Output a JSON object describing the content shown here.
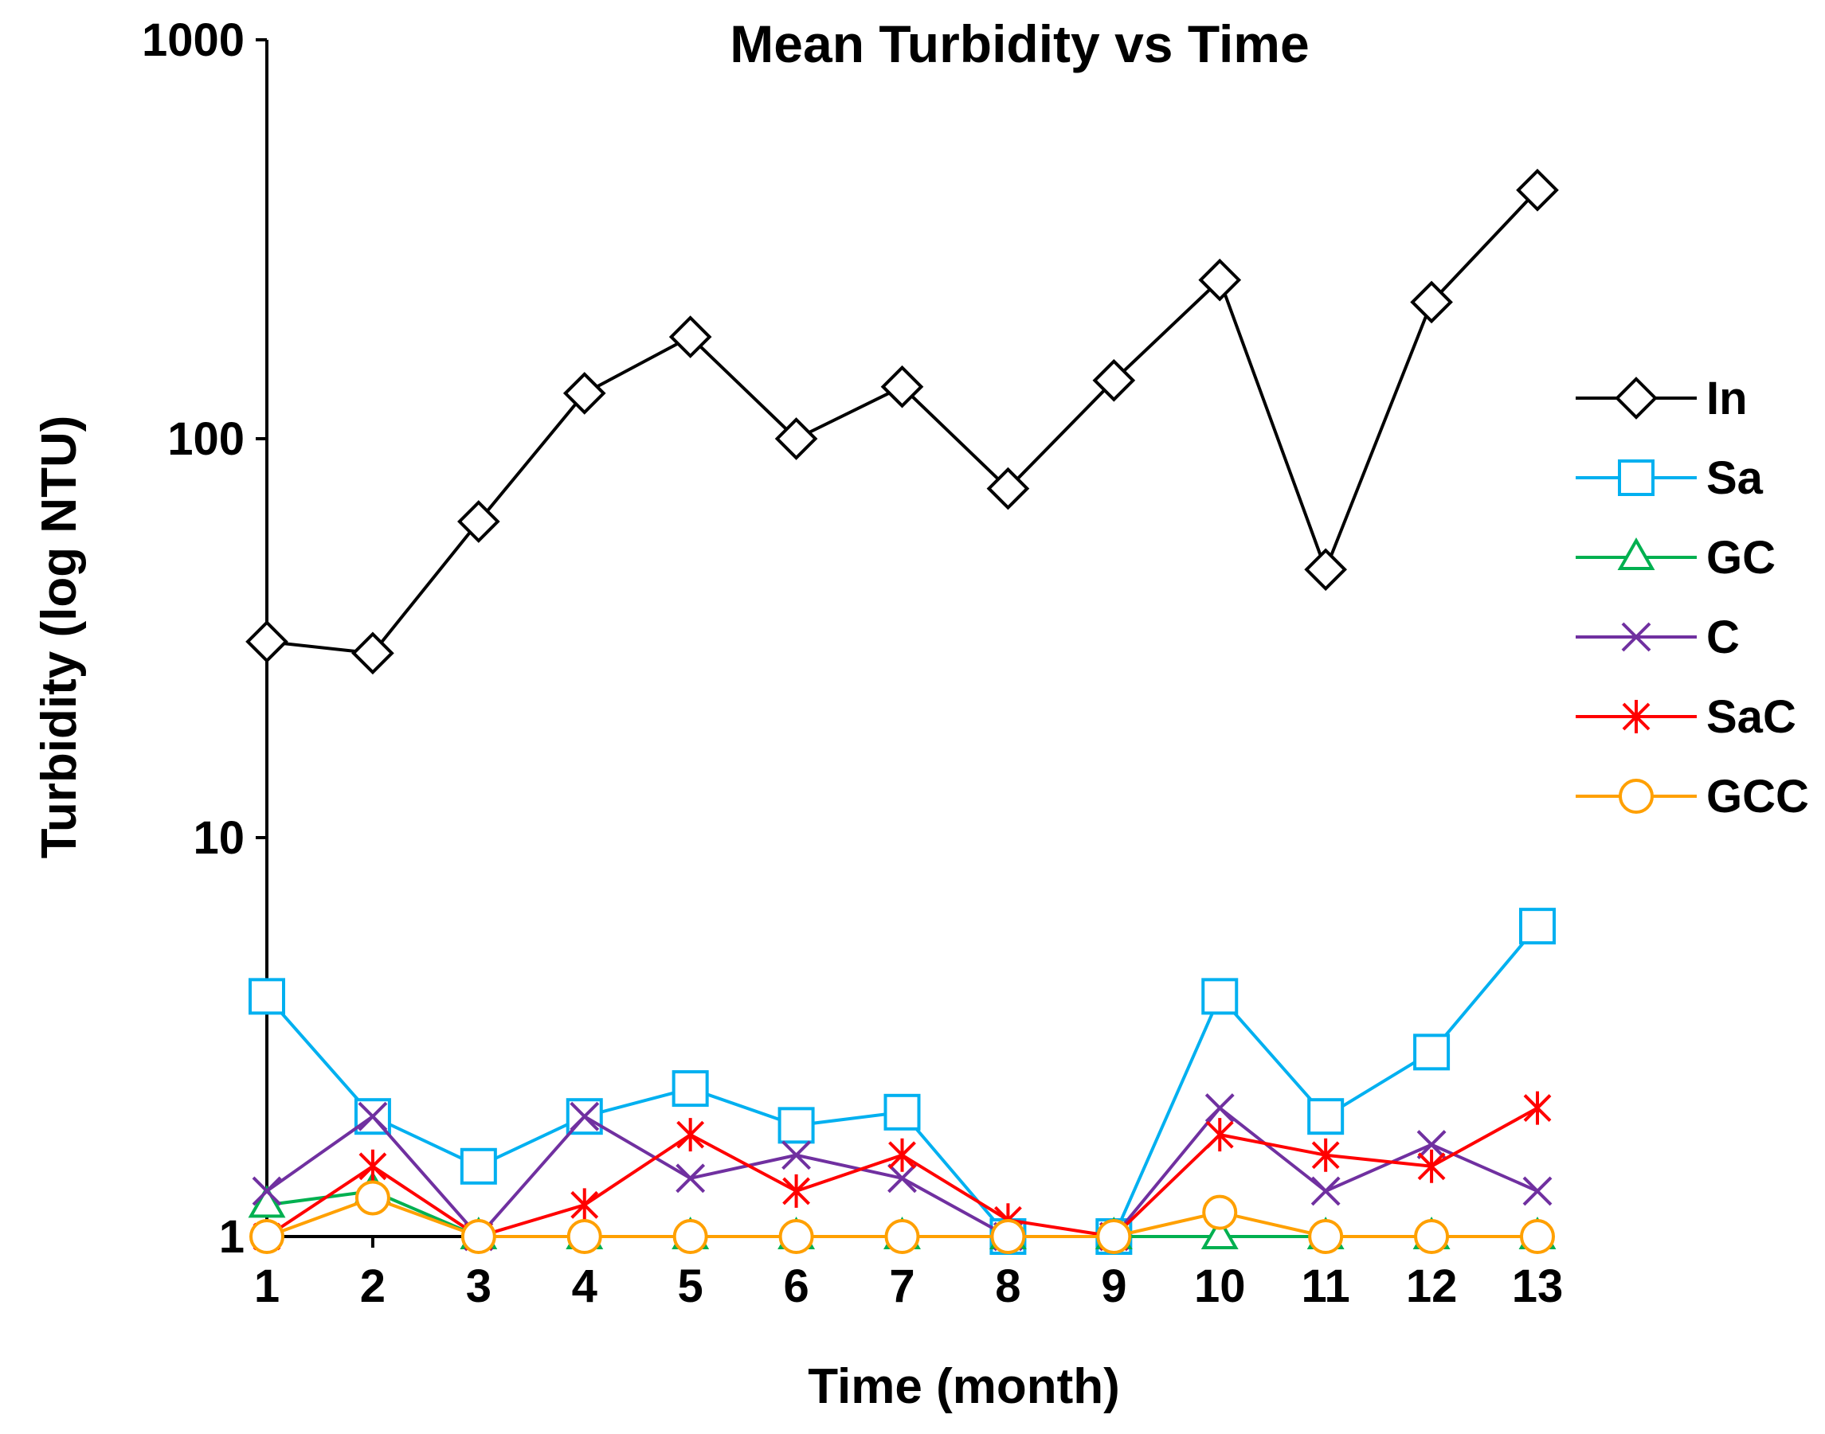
{
  "chart_data": {
    "type": "line",
    "title": "Mean Turbidity vs Time",
    "xlabel": "Time (month)",
    "ylabel": "Turbidity (log NTU)",
    "yscale": "log",
    "ylim": [
      1,
      1000
    ],
    "xlim": [
      1,
      13
    ],
    "grid": false,
    "legend_position": "right",
    "x": [
      1,
      2,
      3,
      4,
      5,
      6,
      7,
      8,
      9,
      10,
      11,
      12,
      13
    ],
    "x_tick_labels": [
      "1",
      "2",
      "3",
      "4",
      "5",
      "6",
      "7",
      "8",
      "9",
      "10",
      "11",
      "12",
      "13"
    ],
    "y_ticks": [
      1,
      10,
      100,
      1000
    ],
    "y_tick_labels": [
      "1",
      "10",
      "100",
      "1000"
    ],
    "series": [
      {
        "name": "In",
        "color": "#000000",
        "marker": "diamond",
        "values": [
          31,
          29,
          62,
          130,
          180,
          100,
          135,
          75,
          140,
          250,
          47,
          220,
          420
        ]
      },
      {
        "name": "Sa",
        "color": "#00b0f0",
        "marker": "square",
        "values": [
          4.0,
          2.0,
          1.5,
          2.0,
          2.35,
          1.9,
          2.05,
          1.0,
          1.0,
          4.0,
          2.0,
          2.9,
          6.0
        ]
      },
      {
        "name": "GC",
        "color": "#00b050",
        "marker": "triangle",
        "values": [
          1.2,
          1.3,
          1.0,
          1.0,
          1.0,
          1.0,
          1.0,
          1.0,
          1.0,
          1.0,
          1.0,
          1.0,
          1.0
        ]
      },
      {
        "name": "C",
        "color": "#7030a0",
        "marker": "x",
        "values": [
          1.3,
          2.0,
          1.0,
          2.0,
          1.4,
          1.6,
          1.4,
          1.0,
          1.0,
          2.1,
          1.3,
          1.7,
          1.3
        ]
      },
      {
        "name": "SaC",
        "color": "#ff0000",
        "marker": "asterisk",
        "values": [
          1.0,
          1.5,
          1.0,
          1.2,
          1.8,
          1.3,
          1.6,
          1.1,
          1.0,
          1.8,
          1.6,
          1.5,
          2.1
        ]
      },
      {
        "name": "GCC",
        "color": "#ffa000",
        "marker": "circle",
        "values": [
          1.0,
          1.25,
          1.0,
          1.0,
          1.0,
          1.0,
          1.0,
          1.0,
          1.0,
          1.15,
          1.0,
          1.0,
          1.0
        ]
      }
    ]
  }
}
